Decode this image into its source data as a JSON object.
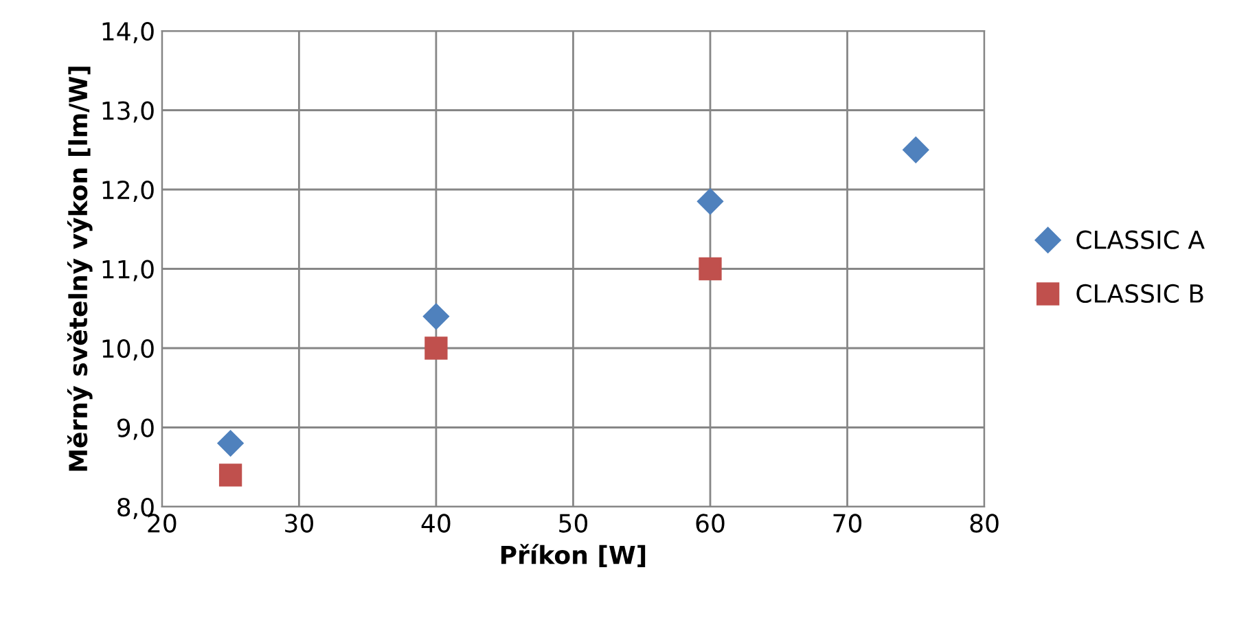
{
  "chart_data": {
    "type": "scatter",
    "xlabel": "Příkon [W]",
    "ylabel": "Měrný světelný výkon [lm/W]",
    "xlim": [
      20,
      80
    ],
    "xticks": [
      20,
      30,
      40,
      50,
      60,
      70,
      80
    ],
    "ylim": [
      8,
      14
    ],
    "yticks": [
      {
        "value": 8,
        "label": "8,0"
      },
      {
        "value": 9,
        "label": "9,0"
      },
      {
        "value": 10,
        "label": "10,0"
      },
      {
        "value": 11,
        "label": "11,0"
      },
      {
        "value": 12,
        "label": "12,0"
      },
      {
        "value": 13,
        "label": "13,0"
      },
      {
        "value": 14,
        "label": "14,0"
      }
    ],
    "grid": true,
    "legend": "right",
    "series": [
      {
        "name": "CLASSIC A",
        "color": "#4f81bd",
        "marker": "diamond",
        "x": [
          25,
          40,
          60,
          75
        ],
        "values": [
          8.8,
          10.4,
          11.85,
          12.5
        ]
      },
      {
        "name": "CLASSIC B",
        "color": "#c0504d",
        "marker": "square",
        "x": [
          25,
          40,
          60
        ],
        "values": [
          8.4,
          10.0,
          11.0
        ]
      }
    ]
  }
}
